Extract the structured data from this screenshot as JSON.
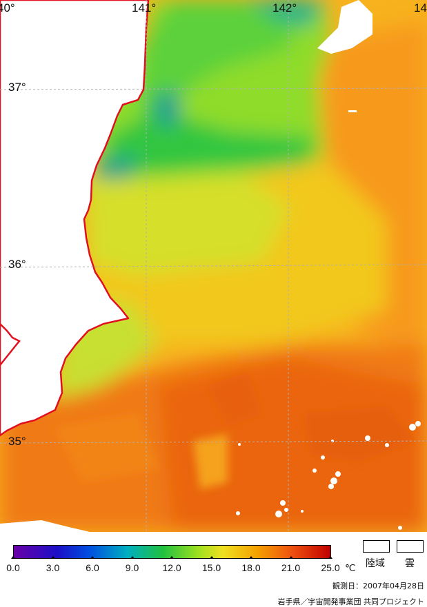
{
  "map": {
    "lon_labels": [
      "40°",
      "141°",
      "142°",
      "14"
    ],
    "lat_labels": [
      "37°",
      "36°",
      "35°"
    ],
    "coastline_color": "#e01020",
    "land_color": "#ffffff",
    "cloud_color": "#ffffff",
    "grid_color": "#b0b0b0"
  },
  "colorbar": {
    "tick_labels": [
      "0.0",
      "3.0",
      "6.0",
      "9.0",
      "12.0",
      "15.0",
      "18.0",
      "21.0",
      "25.0"
    ],
    "unit": "℃",
    "min": 0.0,
    "max": 25.0
  },
  "legend": {
    "land_label": "陸域",
    "cloud_label": "雲"
  },
  "footer": {
    "observation_date": "観測日：2007年04月28日",
    "credit": "岩手県／宇宙開発事業団 共同プロジェクト"
  }
}
